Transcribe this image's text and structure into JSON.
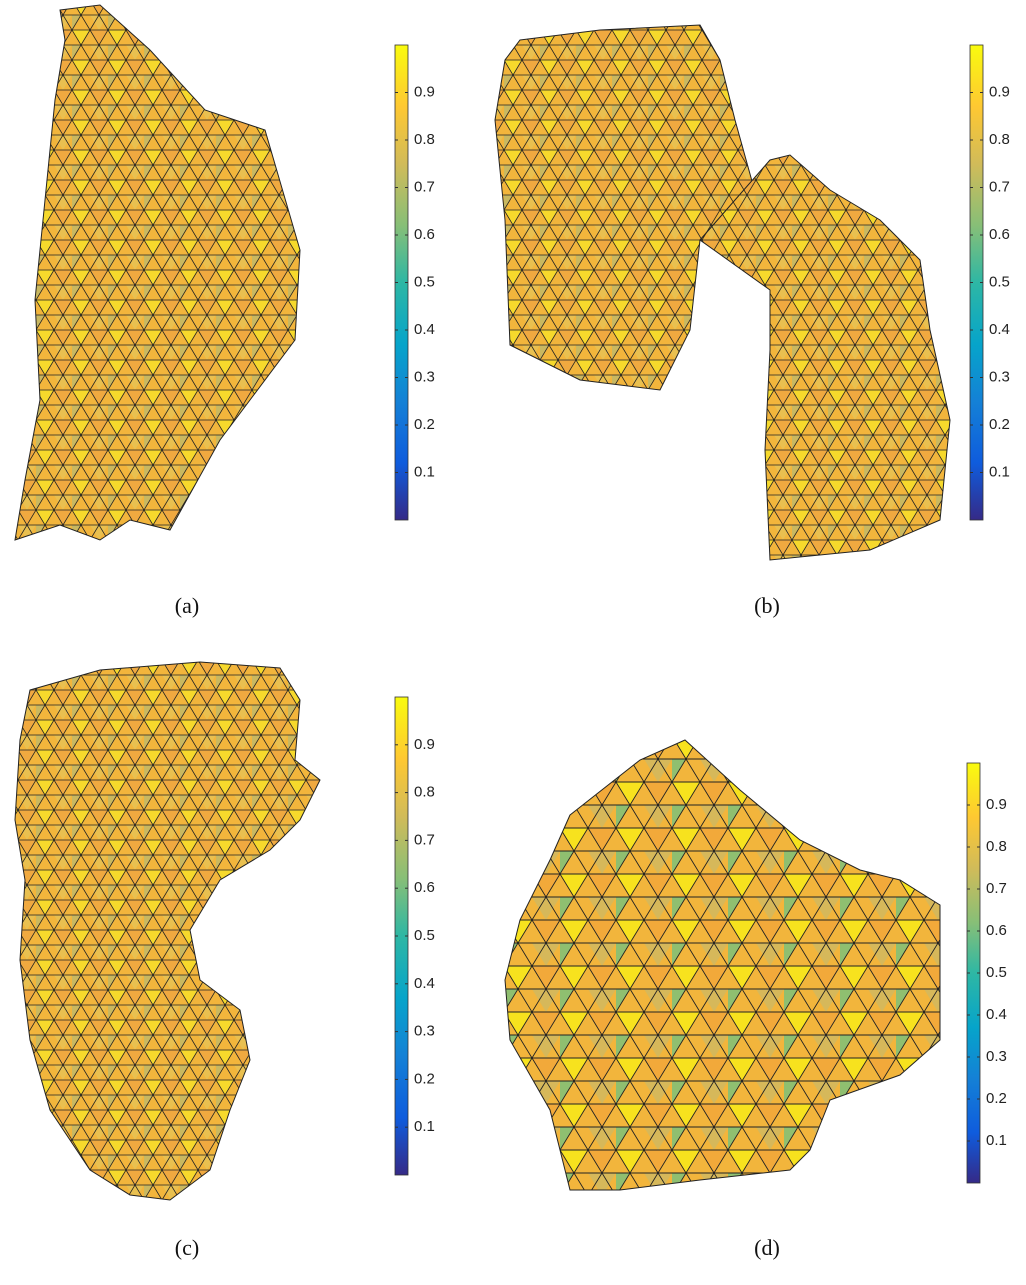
{
  "panels": [
    {
      "caption": "(a)",
      "colorbar": {
        "lim": [
          0,
          1
        ],
        "ticks": [
          0.1,
          0.2,
          0.3,
          0.4,
          0.5,
          0.6,
          0.7,
          0.8,
          0.9
        ]
      }
    },
    {
      "caption": "(b)",
      "colorbar": {
        "lim": [
          0,
          1
        ],
        "ticks": [
          0.1,
          0.2,
          0.3,
          0.4,
          0.5,
          0.6,
          0.7,
          0.8,
          0.9
        ]
      }
    },
    {
      "caption": "(c)",
      "colorbar": {
        "lim": [
          0,
          1
        ],
        "ticks": [
          0.1,
          0.2,
          0.3,
          0.4,
          0.5,
          0.6,
          0.7,
          0.8,
          0.9
        ]
      }
    },
    {
      "caption": "(d)",
      "colorbar": {
        "lim": [
          0,
          1
        ],
        "ticks": [
          0.1,
          0.2,
          0.3,
          0.4,
          0.5,
          0.6,
          0.7,
          0.8,
          0.9
        ]
      }
    }
  ]
}
